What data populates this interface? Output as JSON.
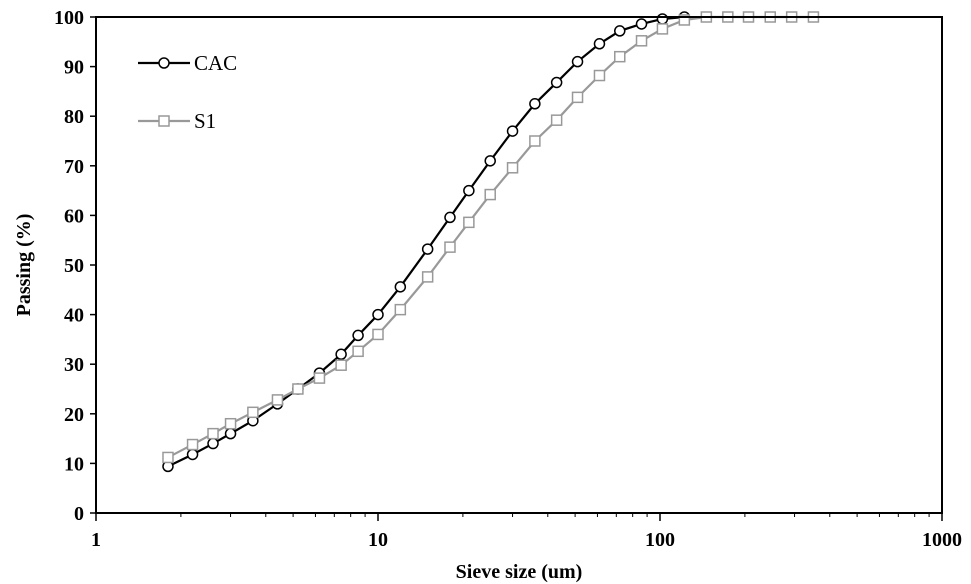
{
  "chart_data": {
    "type": "line",
    "title": "",
    "xlabel": "Sieve size (um)",
    "ylabel": "Passing (%)",
    "x_scale": "log",
    "xlim": [
      1,
      1000
    ],
    "ylim": [
      0,
      100
    ],
    "x_ticks": [
      1,
      10,
      100,
      1000
    ],
    "x_tick_labels": [
      "1",
      "10",
      "100",
      "1000"
    ],
    "y_ticks": [
      0,
      10,
      20,
      30,
      40,
      50,
      60,
      70,
      80,
      90,
      100
    ],
    "y_tick_labels": [
      "0",
      "10",
      "20",
      "30",
      "40",
      "50",
      "60",
      "70",
      "80",
      "90",
      "100"
    ],
    "grid": false,
    "legend_position": "top-left",
    "series": [
      {
        "name": "CAC",
        "color": "#000000",
        "marker": "circle",
        "x": [
          1.8,
          2.2,
          2.6,
          3.0,
          3.6,
          4.4,
          5.2,
          6.2,
          7.4,
          8.5,
          10,
          12,
          15,
          18,
          21,
          25,
          30,
          36,
          43,
          51,
          61,
          72,
          86,
          102,
          122
        ],
        "y": [
          9.4,
          11.8,
          14.0,
          16.0,
          18.6,
          22.0,
          25.0,
          28.2,
          32.0,
          35.8,
          40.0,
          45.6,
          53.2,
          59.6,
          65.0,
          71.0,
          77.0,
          82.5,
          86.8,
          91.0,
          94.6,
          97.2,
          98.6,
          99.6,
          100
        ]
      },
      {
        "name": "S1",
        "color": "#999999",
        "marker": "square",
        "x": [
          1.8,
          2.2,
          2.6,
          3.0,
          3.6,
          4.4,
          5.2,
          6.2,
          7.4,
          8.5,
          10,
          12,
          15,
          18,
          21,
          25,
          30,
          36,
          43,
          51,
          61,
          72,
          86,
          102,
          122,
          146,
          174,
          206,
          246,
          293,
          350
        ],
        "y": [
          11.2,
          13.8,
          16.0,
          18.0,
          20.3,
          22.8,
          25.0,
          27.2,
          29.8,
          32.6,
          36.0,
          41.0,
          47.6,
          53.6,
          58.6,
          64.2,
          69.6,
          75.0,
          79.2,
          83.8,
          88.2,
          92.0,
          95.2,
          97.6,
          99.4,
          100,
          100,
          100,
          100,
          100,
          100
        ]
      }
    ]
  }
}
